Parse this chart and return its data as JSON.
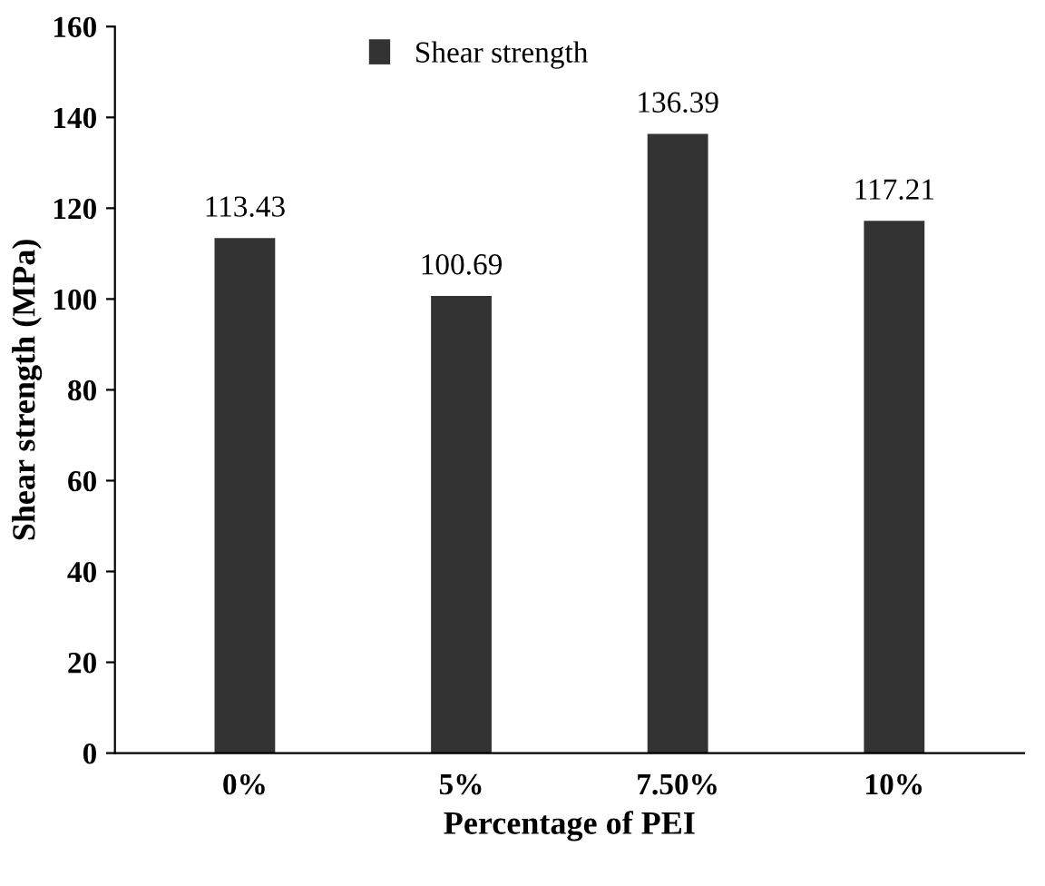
{
  "chart_data": {
    "type": "bar",
    "xlabel": "Percentage of PEI",
    "ylabel": "Shear strength (MPa)",
    "categories": [
      "0%",
      "5%",
      "7.50%",
      "10%"
    ],
    "series": [
      {
        "name": "Shear strength",
        "color": "#333333",
        "values": [
          113.43,
          100.69,
          136.39,
          117.21
        ]
      }
    ],
    "ylim": [
      0,
      160
    ],
    "yticks": [
      0,
      20,
      40,
      60,
      80,
      100,
      120,
      140,
      160
    ],
    "data_labels": true,
    "legend": "top",
    "grid": false
  }
}
